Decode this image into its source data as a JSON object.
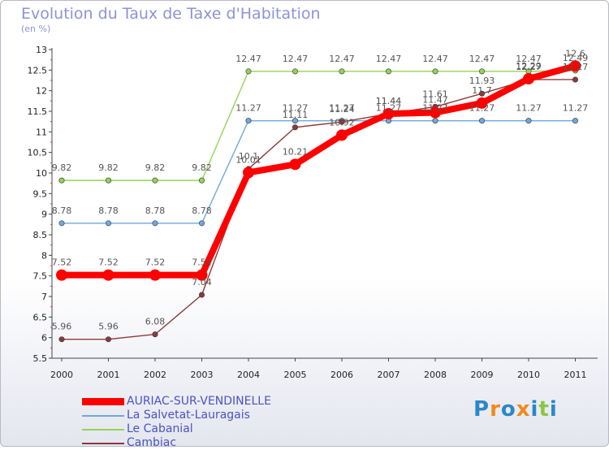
{
  "chart_data": {
    "type": "line",
    "title": "Evolution du Taux de Taxe d'Habitation",
    "subtitle": "(en %)",
    "xlabel": "",
    "ylabel": "",
    "categories": [
      "2000",
      "2001",
      "2002",
      "2003",
      "2004",
      "2005",
      "2006",
      "2007",
      "2008",
      "2009",
      "2010",
      "2011"
    ],
    "ylim": [
      5.5,
      13
    ],
    "yticks": [
      "5.5",
      "6",
      "6.5",
      "7",
      "7.5",
      "8",
      "8.5",
      "9",
      "9.5",
      "10",
      "10.5",
      "11",
      "11.5",
      "12",
      "12.5",
      "13"
    ],
    "grid": false,
    "legend_position": "bottom-left",
    "series": [
      {
        "name": "AURIAC-SUR-VENDINELLE",
        "color": "#ff0000",
        "values": [
          7.52,
          7.52,
          7.52,
          7.52,
          10.01,
          10.21,
          10.92,
          11.44,
          11.47,
          11.7,
          12.29,
          12.6
        ],
        "labels": [
          "7.52",
          "7.52",
          "7.52",
          "7.52",
          "10.01",
          "10.21",
          "10.92",
          "11.44",
          "11.47",
          "11.7",
          "12.29",
          "12.6"
        ]
      },
      {
        "name": "La Salvetat-Lauragais",
        "color": "#6fa8dc",
        "values": [
          8.78,
          8.78,
          8.78,
          8.78,
          11.27,
          11.27,
          11.27,
          11.27,
          11.27,
          11.27,
          11.27,
          11.27
        ],
        "labels": [
          "8.78",
          "8.78",
          "8.78",
          "8.78",
          "11.27",
          "11.27",
          "11.27",
          "11.27",
          "11.27",
          "11.27",
          "11.27",
          "11.27"
        ]
      },
      {
        "name": "Le Cabanial",
        "color": "#93d35a",
        "values": [
          9.82,
          9.82,
          9.82,
          9.82,
          12.47,
          12.47,
          12.47,
          12.47,
          12.47,
          12.47,
          12.47,
          12.49
        ],
        "labels": [
          "9.82",
          "9.82",
          "9.82",
          "9.82",
          "12.47",
          "12.47",
          "12.47",
          "12.47",
          "12.47",
          "12.47",
          "12.47",
          "12.49"
        ]
      },
      {
        "name": "Cambiac",
        "color": "#8b3a3a",
        "values": [
          5.96,
          5.96,
          6.08,
          7.04,
          10.1,
          11.11,
          11.24,
          11.44,
          11.61,
          11.93,
          12.27,
          12.27
        ],
        "labels": [
          "5.96",
          "5.96",
          "6.08",
          "7.04",
          "10.1",
          "11.11",
          "11.24",
          "11.44",
          "11.61",
          "11.93",
          "12.27",
          "12.27"
        ]
      }
    ]
  },
  "logo": {
    "text": "Proxiti",
    "colors": [
      "#2a88c8",
      "#f08a1c",
      "#2a88c8",
      "#f08a1c",
      "#2a88c8",
      "#8cc63f",
      "#2a88c8"
    ]
  }
}
